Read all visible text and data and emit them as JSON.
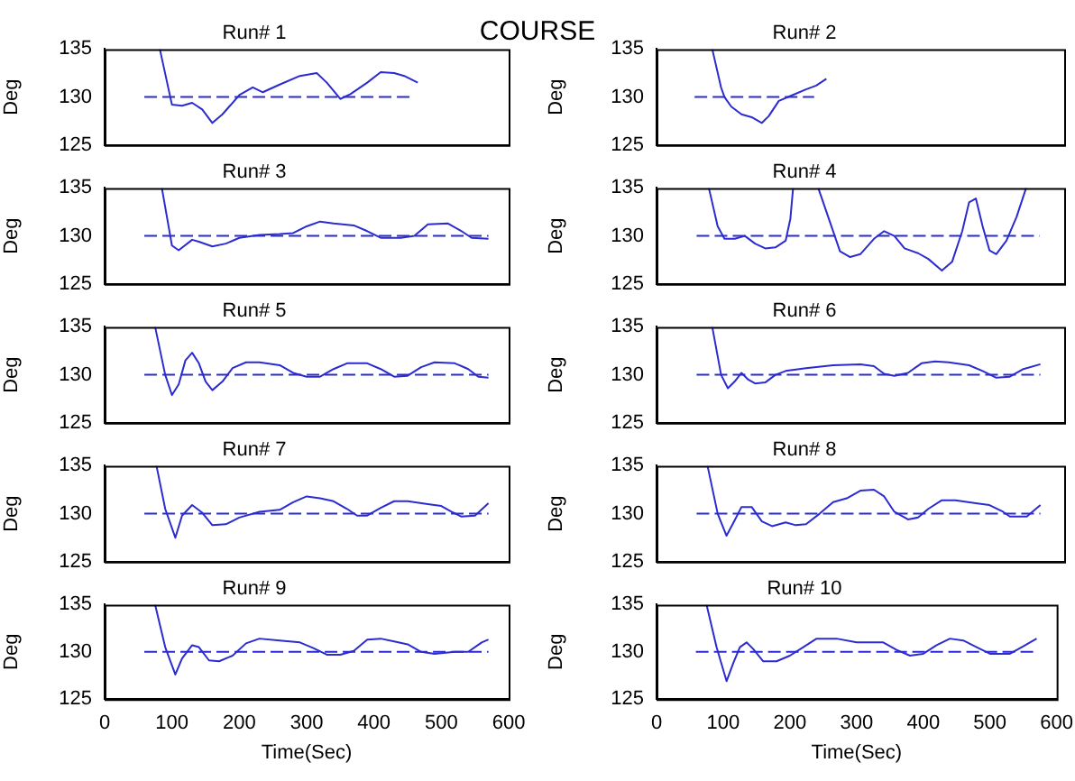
{
  "chart_data": [
    {
      "type": "line",
      "title": "Run# 1",
      "ylabel": "Deg",
      "annotations": [
        "COURSE"
      ],
      "xlim": [
        0,
        600
      ],
      "xticks": [
        0,
        100,
        200,
        300,
        400,
        500,
        600
      ],
      "ylim": [
        125,
        135
      ],
      "yticks": [
        125,
        130,
        135
      ],
      "tick_labels": "y",
      "marker": "none",
      "series": [
        {
          "color": "#2b2bd0",
          "x": [
            82,
            100,
            115,
            130,
            145,
            160,
            175,
            200,
            220,
            235,
            260,
            290,
            315,
            330,
            350,
            365,
            390,
            410,
            430,
            445,
            465
          ],
          "values": [
            135,
            129.2,
            129.1,
            129.4,
            128.7,
            127.3,
            128.2,
            130.2,
            131,
            130.5,
            131.3,
            132.2,
            132.5,
            131.5,
            129.8,
            130.3,
            131.5,
            132.6,
            132.5,
            132.2,
            131.5
          ]
        },
        {
          "color": "#2b2bd0",
          "line_style": "dashed",
          "x": [
            59,
            455
          ],
          "values": [
            130,
            130
          ]
        }
      ]
    },
    {
      "type": "line",
      "title": "Run# 2",
      "ylabel": "Deg",
      "xlim": [
        0,
        600
      ],
      "xticks": [
        0,
        100,
        200,
        300,
        400,
        500,
        600
      ],
      "ylim": [
        125,
        135
      ],
      "yticks": [
        125,
        130,
        135
      ],
      "tick_labels": "y",
      "marker": "none",
      "series": [
        {
          "color": "#2b2bd0",
          "x": [
            82,
            95,
            100,
            110,
            125,
            140,
            155,
            165,
            180,
            200,
            220,
            235,
            250
          ],
          "values": [
            135,
            131,
            130,
            129,
            128.2,
            127.9,
            127.3,
            128,
            129.6,
            130.2,
            130.8,
            131.2,
            131.9
          ]
        },
        {
          "color": "#2b2bd0",
          "line_style": "dashed",
          "x": [
            56,
            232
          ],
          "values": [
            130,
            130
          ]
        }
      ]
    },
    {
      "type": "line",
      "title": "Run# 3",
      "ylabel": "Deg",
      "xlim": [
        0,
        600
      ],
      "xticks": [
        0,
        100,
        200,
        300,
        400,
        500,
        600
      ],
      "ylim": [
        125,
        135
      ],
      "yticks": [
        125,
        130,
        135
      ],
      "tick_labels": "y",
      "marker": "none",
      "series": [
        {
          "color": "#2b2bd0",
          "x": [
            85,
            100,
            110,
            130,
            140,
            160,
            180,
            200,
            230,
            260,
            280,
            300,
            320,
            340,
            370,
            390,
            410,
            440,
            460,
            480,
            510,
            530,
            545,
            570
          ],
          "values": [
            135,
            129,
            128.5,
            129.6,
            129.4,
            128.9,
            129.2,
            129.8,
            130.1,
            130.2,
            130.3,
            131,
            131.5,
            131.3,
            131.1,
            130.5,
            129.8,
            129.8,
            130,
            131.2,
            131.3,
            130.5,
            129.8,
            129.7
          ]
        },
        {
          "color": "#2b2bd0",
          "line_style": "dashed",
          "x": [
            59,
            570
          ],
          "values": [
            130,
            130
          ]
        }
      ]
    },
    {
      "type": "line",
      "title": "Run# 4",
      "ylabel": "Deg",
      "xlim": [
        0,
        600
      ],
      "xticks": [
        0,
        100,
        200,
        300,
        400,
        500,
        600
      ],
      "ylim": [
        125,
        135
      ],
      "yticks": [
        125,
        130,
        135
      ],
      "tick_labels": "y",
      "marker": "none",
      "series": [
        {
          "color": "#2b2bd0",
          "x": [
            77,
            90,
            100,
            115,
            130,
            145,
            160,
            175,
            190,
            197,
            201,
            220,
            238,
            255,
            270,
            285,
            300,
            320,
            335,
            350,
            365,
            385,
            400,
            420,
            435,
            450,
            460,
            470,
            480,
            490,
            500,
            515,
            530,
            544
          ],
          "values": [
            135,
            131,
            129.7,
            129.7,
            130,
            129.2,
            128.7,
            128.8,
            129.5,
            131.8,
            135,
            null,
            135,
            131.5,
            128.4,
            127.8,
            128.1,
            129.7,
            130.5,
            130,
            128.7,
            128.2,
            127.6,
            126.4,
            127.3,
            130.5,
            133.5,
            133.9,
            131,
            128.5,
            128.1,
            129.5,
            132,
            135
          ]
        },
        {
          "color": "#2b2bd0",
          "line_style": "dashed",
          "x": [
            59,
            564
          ],
          "values": [
            130,
            130
          ]
        }
      ]
    },
    {
      "type": "line",
      "title": "Run# 5",
      "ylabel": "Deg",
      "xlim": [
        0,
        600
      ],
      "xticks": [
        0,
        100,
        200,
        300,
        400,
        500,
        600
      ],
      "ylim": [
        125,
        135
      ],
      "yticks": [
        125,
        130,
        135
      ],
      "tick_labels": "y",
      "marker": "none",
      "series": [
        {
          "color": "#2b2bd0",
          "x": [
            75,
            90,
            100,
            110,
            120,
            130,
            140,
            150,
            160,
            175,
            190,
            210,
            230,
            260,
            280,
            300,
            320,
            340,
            360,
            390,
            410,
            430,
            450,
            470,
            490,
            520,
            540,
            555,
            570
          ],
          "values": [
            135,
            130,
            127.9,
            129,
            131.5,
            132.3,
            131.2,
            129.3,
            128.4,
            129.3,
            130.7,
            131.3,
            131.3,
            131,
            130.2,
            129.8,
            129.8,
            130.6,
            131.2,
            131.2,
            130.6,
            129.8,
            129.9,
            130.8,
            131.3,
            131.2,
            130.6,
            129.8,
            129.7
          ]
        },
        {
          "color": "#2b2bd0",
          "line_style": "dashed",
          "x": [
            59,
            570
          ],
          "values": [
            130,
            130
          ]
        }
      ]
    },
    {
      "type": "line",
      "title": "Run# 6",
      "ylabel": "Deg",
      "xlim": [
        0,
        600
      ],
      "xticks": [
        0,
        100,
        200,
        300,
        400,
        500,
        600
      ],
      "ylim": [
        125,
        135
      ],
      "yticks": [
        125,
        130,
        135
      ],
      "tick_labels": "y",
      "marker": "none",
      "series": [
        {
          "color": "#2b2bd0",
          "x": [
            82,
            95,
            105,
            115,
            125,
            135,
            145,
            160,
            175,
            190,
            220,
            260,
            300,
            320,
            335,
            350,
            370,
            390,
            410,
            430,
            460,
            480,
            500,
            520,
            540,
            565
          ],
          "values": [
            135,
            130,
            128.6,
            129.3,
            130.2,
            129.5,
            129.1,
            129.2,
            130,
            130.4,
            130.7,
            131,
            131.1,
            130.9,
            130.1,
            129.9,
            130.2,
            131.2,
            131.4,
            131.3,
            131,
            130.4,
            129.7,
            129.8,
            130.6,
            131.1
          ]
        },
        {
          "color": "#2b2bd0",
          "line_style": "dashed",
          "x": [
            59,
            565
          ],
          "values": [
            130,
            130
          ]
        }
      ]
    },
    {
      "type": "line",
      "title": "Run# 7",
      "ylabel": "Deg",
      "xlim": [
        0,
        600
      ],
      "xticks": [
        0,
        100,
        200,
        300,
        400,
        500,
        600
      ],
      "ylim": [
        125,
        135
      ],
      "yticks": [
        125,
        130,
        135
      ],
      "tick_labels": "y",
      "marker": "none",
      "series": [
        {
          "color": "#2b2bd0",
          "x": [
            77,
            90,
            105,
            115,
            130,
            145,
            160,
            180,
            200,
            230,
            260,
            280,
            300,
            320,
            340,
            360,
            375,
            390,
            410,
            430,
            450,
            480,
            500,
            515,
            530,
            550,
            570
          ],
          "values": [
            135,
            130.5,
            127.5,
            129.8,
            130.9,
            130.1,
            128.8,
            128.9,
            129.6,
            130.2,
            130.4,
            131.2,
            131.8,
            131.6,
            131.3,
            130.5,
            129.8,
            129.8,
            130.6,
            131.3,
            131.3,
            131,
            130.8,
            130.2,
            129.7,
            129.8,
            131.1
          ]
        },
        {
          "color": "#2b2bd0",
          "line_style": "dashed",
          "x": [
            59,
            570
          ],
          "values": [
            130,
            130
          ]
        }
      ]
    },
    {
      "type": "line",
      "title": "Run# 8",
      "ylabel": "Deg",
      "xlim": [
        0,
        600
      ],
      "xticks": [
        0,
        100,
        200,
        300,
        400,
        500,
        600
      ],
      "ylim": [
        125,
        135
      ],
      "yticks": [
        125,
        130,
        135
      ],
      "tick_labels": "y",
      "marker": "none",
      "series": [
        {
          "color": "#2b2bd0",
          "x": [
            75,
            90,
            103,
            115,
            125,
            140,
            155,
            170,
            190,
            205,
            220,
            240,
            260,
            280,
            300,
            320,
            335,
            350,
            370,
            385,
            400,
            420,
            440,
            470,
            490,
            510,
            520,
            545,
            565
          ],
          "values": [
            135,
            130,
            127.7,
            129.3,
            130.7,
            130.7,
            129.2,
            128.7,
            129.1,
            128.8,
            128.9,
            130,
            131.2,
            131.6,
            132.4,
            132.5,
            131.8,
            130.2,
            129.4,
            129.6,
            130.5,
            131.4,
            131.4,
            131.1,
            130.9,
            130.2,
            129.7,
            129.7,
            130.9
          ]
        },
        {
          "color": "#2b2bd0",
          "line_style": "dashed",
          "x": [
            59,
            565
          ],
          "values": [
            130,
            130
          ]
        }
      ]
    },
    {
      "type": "line",
      "title": "Run# 9",
      "ylabel": "Deg",
      "xlabel": "Time(Sec)",
      "xlim": [
        0,
        600
      ],
      "xticks": [
        0,
        100,
        200,
        300,
        400,
        500,
        600
      ],
      "ylim": [
        125,
        135
      ],
      "yticks": [
        125,
        130,
        135
      ],
      "marker": "none",
      "series": [
        {
          "color": "#2b2bd0",
          "x": [
            75,
            90,
            105,
            115,
            130,
            140,
            155,
            170,
            190,
            210,
            230,
            260,
            290,
            310,
            330,
            350,
            370,
            390,
            410,
            430,
            450,
            470,
            490,
            520,
            540,
            560,
            570
          ],
          "values": [
            135,
            130.5,
            127.6,
            129.3,
            130.7,
            130.5,
            129.1,
            129,
            129.6,
            130.9,
            131.4,
            131.2,
            131,
            130.4,
            129.7,
            129.7,
            130.1,
            131.3,
            131.4,
            131.1,
            130.8,
            130,
            129.8,
            130,
            130,
            131,
            131.3
          ]
        },
        {
          "color": "#2b2bd0",
          "line_style": "dashed",
          "x": [
            59,
            570
          ],
          "values": [
            130,
            130
          ]
        }
      ]
    },
    {
      "type": "line",
      "title": "Run# 10",
      "ylabel": "Deg",
      "xlabel": "Time(Sec)",
      "xlim": [
        0,
        600
      ],
      "xticks": [
        0,
        100,
        200,
        300,
        400,
        500,
        600
      ],
      "ylim": [
        125,
        135
      ],
      "yticks": [
        125,
        130,
        135
      ],
      "marker": "none",
      "series": [
        {
          "color": "#2b2bd0",
          "x": [
            75,
            90,
            105,
            115,
            125,
            135,
            145,
            160,
            180,
            200,
            220,
            240,
            270,
            300,
            340,
            360,
            380,
            400,
            420,
            440,
            460,
            480,
            500,
            530,
            550,
            570
          ],
          "values": [
            135,
            130.5,
            126.9,
            128.8,
            130.5,
            131,
            130.3,
            129,
            129,
            129.6,
            130.5,
            131.4,
            131.4,
            131,
            131,
            130.2,
            129.6,
            129.8,
            130.7,
            131.4,
            131.2,
            130.5,
            129.8,
            129.8,
            130.6,
            131.4
          ]
        },
        {
          "color": "#2b2bd0",
          "line_style": "dashed",
          "x": [
            59,
            570
          ],
          "values": [
            130,
            130
          ]
        }
      ]
    }
  ]
}
